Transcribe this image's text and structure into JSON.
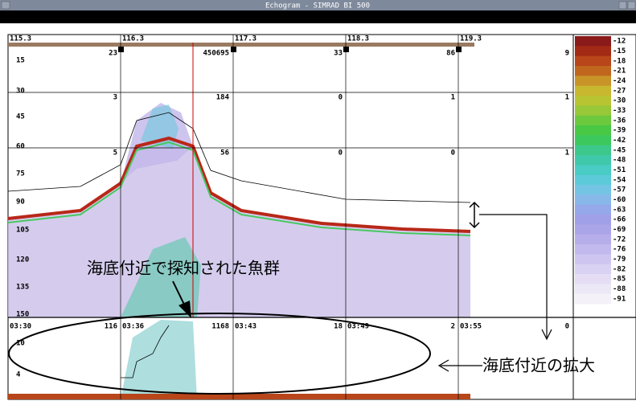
{
  "window": {
    "title": "Echogram - SIMRAD BI 500"
  },
  "top_labels": [
    "115.3",
    "116.3",
    "117.3",
    "118.3",
    "119.3"
  ],
  "marker_counts": [
    "23",
    "450695",
    "33",
    "86",
    "9"
  ],
  "depth_labels": [
    "15",
    "30",
    "45",
    "60",
    "75",
    "90",
    "105",
    "120",
    "135",
    "150"
  ],
  "cell_counts": [
    [
      "3",
      "184",
      "0",
      "1",
      "1"
    ],
    [
      "5",
      "56",
      "0",
      "0",
      "1"
    ]
  ],
  "zoom_panel": {
    "times": [
      "03:30",
      "03:36",
      "03:43",
      "03:49",
      "03:55"
    ],
    "counts": [
      "116",
      "1168",
      "18",
      "2",
      "0"
    ],
    "depth_labels": [
      "10",
      "4"
    ]
  },
  "annotations": {
    "school": "海底付近で探知された魚群",
    "zoom": "海底付近の拡大"
  },
  "color_scale": [
    {
      "label": "-12",
      "color": "#8b1a1a"
    },
    {
      "label": "-15",
      "color": "#a32a14"
    },
    {
      "label": "-18",
      "color": "#b8461a"
    },
    {
      "label": "-21",
      "color": "#c0661e"
    },
    {
      "label": "-24",
      "color": "#c89428"
    },
    {
      "label": "-27",
      "color": "#c8b830"
    },
    {
      "label": "-30",
      "color": "#b8c432"
    },
    {
      "label": "-33",
      "color": "#98c838"
    },
    {
      "label": "-36",
      "color": "#6cc83c"
    },
    {
      "label": "-39",
      "color": "#48c844"
    },
    {
      "label": "-42",
      "color": "#3cc85c"
    },
    {
      "label": "-45",
      "color": "#3cc88a"
    },
    {
      "label": "-48",
      "color": "#40c8aa"
    },
    {
      "label": "-51",
      "color": "#48ccc4"
    },
    {
      "label": "-54",
      "color": "#5ccad8"
    },
    {
      "label": "-57",
      "color": "#74c4e4"
    },
    {
      "label": "-60",
      "color": "#88b8ea"
    },
    {
      "label": "-63",
      "color": "#94a8ea"
    },
    {
      "label": "-66",
      "color": "#a0a0e8"
    },
    {
      "label": "-69",
      "color": "#aaa4e8"
    },
    {
      "label": "-72",
      "color": "#b6aeea"
    },
    {
      "label": "-76",
      "color": "#c2baee"
    },
    {
      "label": "-79",
      "color": "#cec6f0"
    },
    {
      "label": "-82",
      "color": "#dad2f2"
    },
    {
      "label": "-85",
      "color": "#e4ddf4"
    },
    {
      "label": "-88",
      "color": "#ece8f6"
    },
    {
      "label": "-91",
      "color": "#f4f2f8"
    }
  ]
}
